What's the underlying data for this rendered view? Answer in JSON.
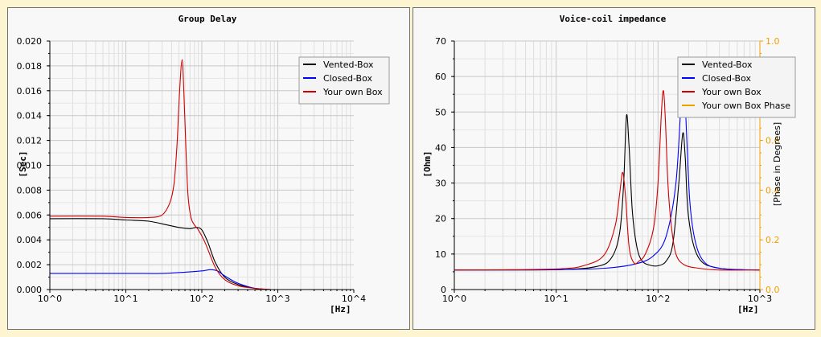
{
  "chart_data": [
    {
      "type": "line",
      "title": "Group Delay",
      "xlabel": "[Hz]",
      "ylabel": "[Sec]",
      "xscale": "log",
      "xlim": [
        1,
        10000
      ],
      "ylim": [
        0,
        0.02
      ],
      "x_ticks": [
        "10^0",
        "10^1",
        "10^2",
        "10^3",
        "10^4"
      ],
      "y_ticks": [
        "0.000",
        "0.002",
        "0.004",
        "0.006",
        "0.008",
        "0.010",
        "0.012",
        "0.014",
        "0.016",
        "0.018",
        "0.020"
      ],
      "grid": true,
      "legend_position": "top-right",
      "series": [
        {
          "name": "Vented-Box",
          "color": "#000000",
          "x": [
            1,
            5,
            10,
            20,
            35,
            50,
            70,
            85,
            100,
            120,
            150,
            200,
            300,
            500,
            800
          ],
          "y": [
            0.0057,
            0.0057,
            0.0056,
            0.0055,
            0.0052,
            0.005,
            0.0049,
            0.005,
            0.0048,
            0.0038,
            0.0022,
            0.001,
            0.0004,
            0.0001,
            0.0
          ]
        },
        {
          "name": "Closed-Box",
          "color": "#0000ff",
          "x": [
            1,
            10,
            30,
            60,
            100,
            130,
            160,
            200,
            300,
            500,
            800
          ],
          "y": [
            0.0013,
            0.0013,
            0.0013,
            0.0014,
            0.0015,
            0.0016,
            0.0015,
            0.0011,
            0.0005,
            0.0001,
            0.0
          ]
        },
        {
          "name": "Your own Box",
          "color": "#d00000",
          "x": [
            1,
            5,
            10,
            20,
            30,
            38,
            43,
            47,
            51,
            55,
            58,
            62,
            66,
            72,
            80,
            90,
            110,
            150,
            200,
            300,
            500,
            800
          ],
          "y": [
            0.0059,
            0.0059,
            0.0058,
            0.0058,
            0.006,
            0.007,
            0.0085,
            0.0115,
            0.016,
            0.0185,
            0.016,
            0.011,
            0.0075,
            0.0058,
            0.0052,
            0.0048,
            0.0038,
            0.0018,
            0.0008,
            0.0003,
            0.0001,
            0.0
          ]
        }
      ]
    },
    {
      "type": "line",
      "title": "Voice-coil impedance",
      "xlabel": "[Hz]",
      "ylabel": "[Ohm]",
      "y2label": "[Phase in Degrees]",
      "xscale": "log",
      "xlim": [
        1,
        1000
      ],
      "ylim": [
        0,
        70
      ],
      "y2lim": [
        0,
        1
      ],
      "x_ticks": [
        "10^0",
        "10^1",
        "10^2",
        "10^3"
      ],
      "y_ticks": [
        "0",
        "10",
        "20",
        "30",
        "40",
        "50",
        "60",
        "70"
      ],
      "y2_ticks": [
        "0.0",
        "0.2",
        "0.4",
        "0.6",
        "0.8",
        "1.0"
      ],
      "grid": true,
      "legend_position": "top-right",
      "series": [
        {
          "name": "Vented-Box",
          "color": "#000000",
          "x": [
            1,
            10,
            25,
            35,
            42,
            46,
            49,
            52,
            56,
            62,
            70,
            85,
            100,
            120,
            140,
            160,
            175,
            185,
            200,
            250,
            400,
            1000
          ],
          "y": [
            5.5,
            5.6,
            6.5,
            9,
            16,
            30,
            49,
            40,
            22,
            12,
            8,
            6.8,
            6.7,
            8,
            13,
            30,
            44,
            37,
            20,
            9,
            6,
            5.5
          ]
        },
        {
          "name": "Closed-Box",
          "color": "#0000ff",
          "x": [
            1,
            10,
            30,
            60,
            90,
            120,
            150,
            170,
            180,
            190,
            205,
            230,
            280,
            400,
            1000
          ],
          "y": [
            5.5,
            5.6,
            6,
            7.2,
            9.5,
            15,
            30,
            55,
            60,
            45,
            25,
            14,
            8,
            6,
            5.5
          ]
        },
        {
          "name": "Your own Box",
          "color": "#d00000",
          "x": [
            1,
            10,
            20,
            30,
            38,
            42,
            45,
            48,
            52,
            58,
            65,
            75,
            90,
            100,
            108,
            113,
            118,
            125,
            135,
            150,
            180,
            250,
            400,
            1000
          ],
          "y": [
            5.5,
            5.8,
            7,
            10,
            18,
            27,
            33,
            26,
            12,
            7.5,
            8,
            10,
            17,
            30,
            50,
            56,
            48,
            30,
            18,
            10,
            7,
            6,
            5.5,
            5.5
          ]
        },
        {
          "name": "Your own Box Phase",
          "color": "#f0a000",
          "x": [],
          "y": []
        }
      ]
    }
  ]
}
